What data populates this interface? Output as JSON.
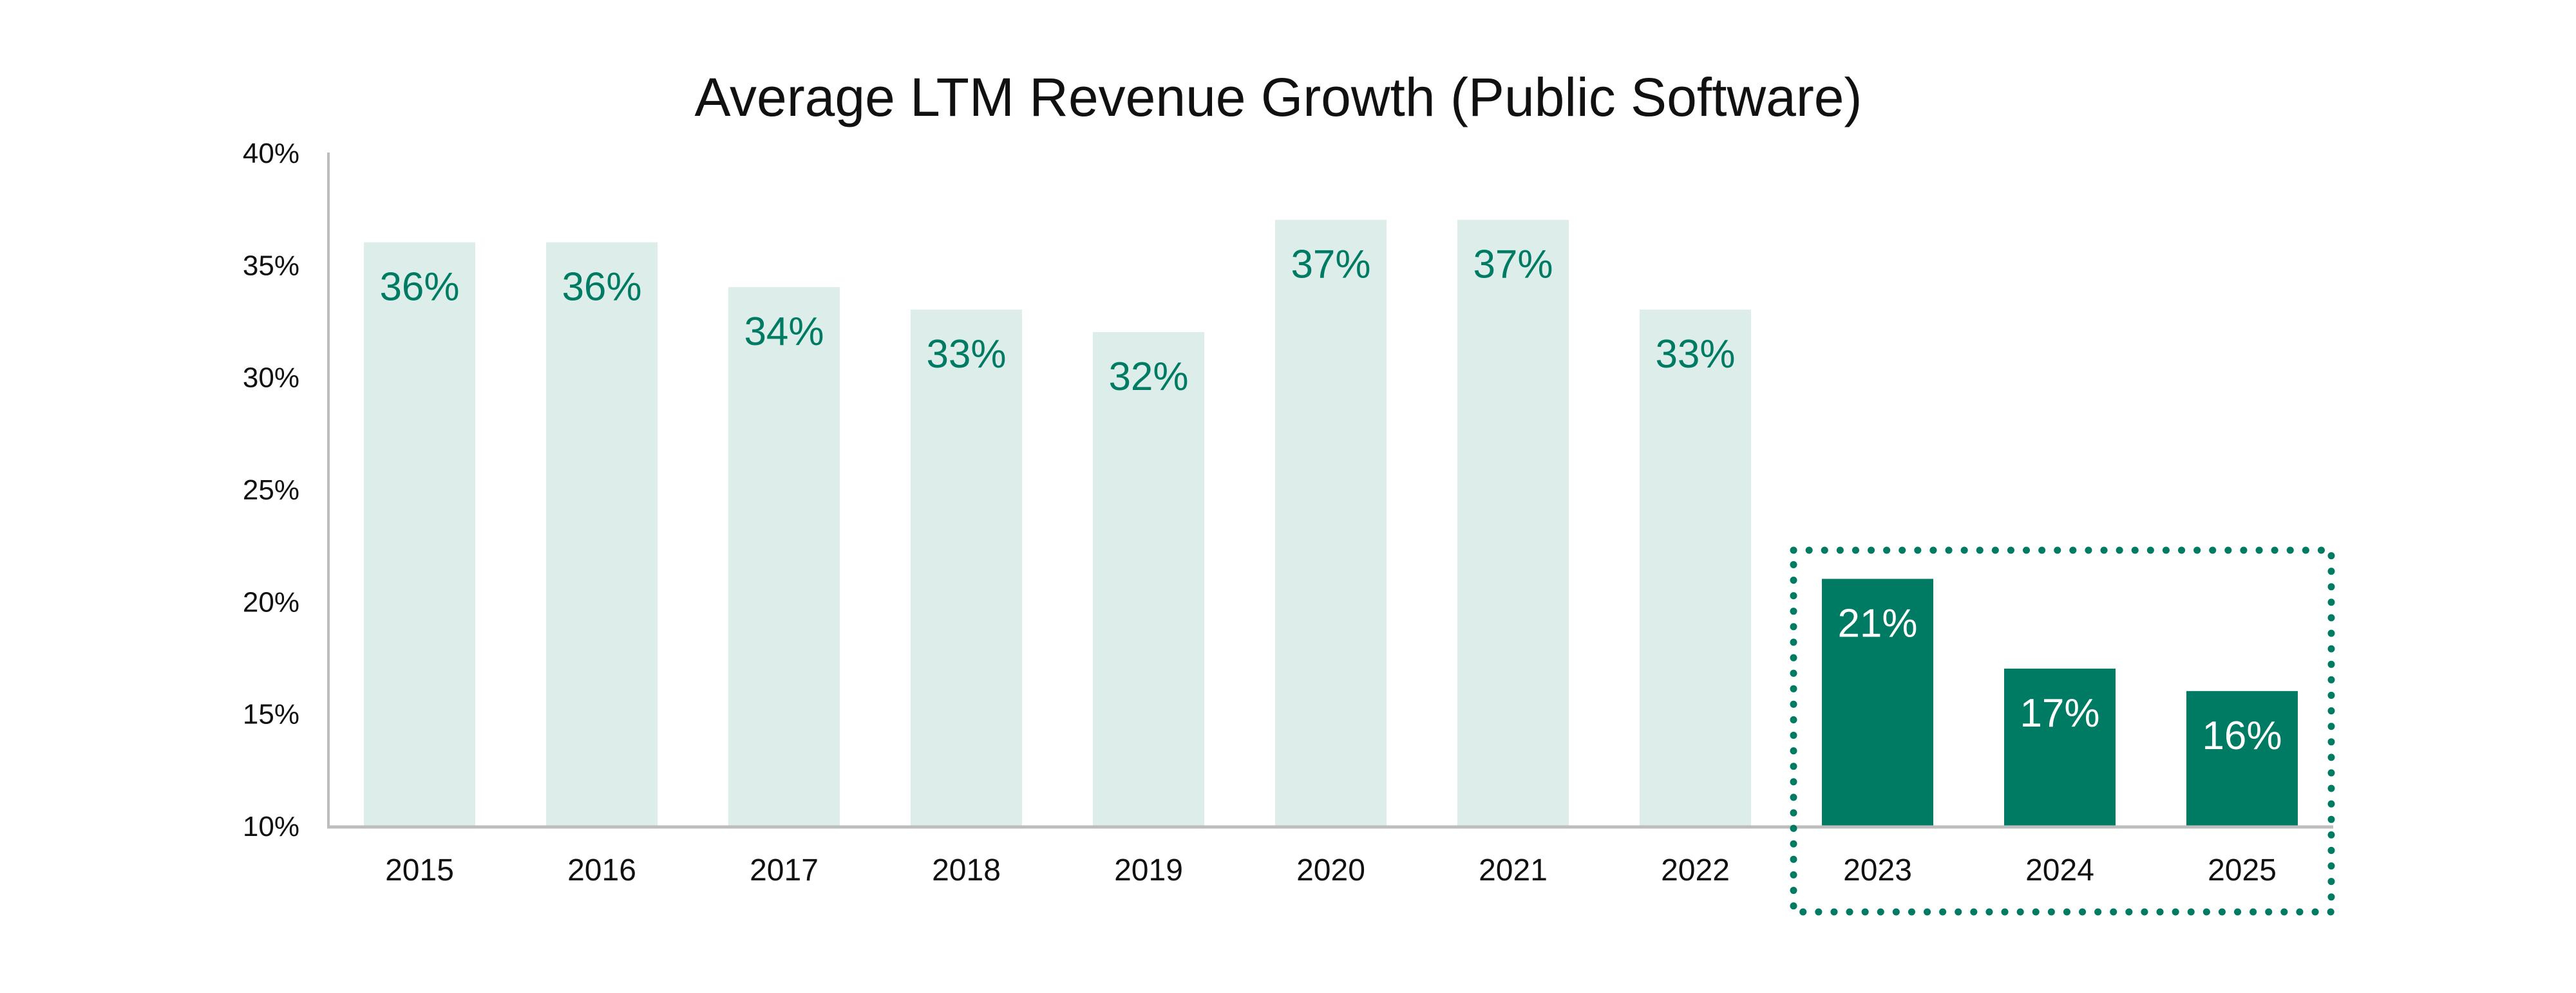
{
  "chart_data": {
    "type": "bar",
    "title": "Average LTM Revenue Growth (Public Software)",
    "xlabel": "",
    "ylabel": "",
    "ylim": [
      10,
      40
    ],
    "yticks": [
      "10%",
      "15%",
      "20%",
      "25%",
      "30%",
      "35%",
      "40%"
    ],
    "ytick_values": [
      10,
      15,
      20,
      25,
      30,
      35,
      40
    ],
    "categories": [
      "2015",
      "2016",
      "2017",
      "2018",
      "2019",
      "2020",
      "2021",
      "2022",
      "2023",
      "2024",
      "2025"
    ],
    "values": [
      36,
      36,
      34,
      33,
      32,
      37,
      37,
      33,
      21,
      17,
      16
    ],
    "labels": [
      "36%",
      "36%",
      "34%",
      "33%",
      "32%",
      "37%",
      "37%",
      "33%",
      "21%",
      "17%",
      "16%"
    ],
    "highlighted": [
      false,
      false,
      false,
      false,
      false,
      false,
      false,
      false,
      true,
      true,
      true
    ],
    "grid": false,
    "annotation": "dotted box around 2023–2025"
  },
  "colors": {
    "highlight": "#007B63",
    "muted": "#DDEDE9",
    "muted_label": "#007B63",
    "highlight_label": "#FFFFFF",
    "axis": "#BDBDBD",
    "text": "#111111"
  }
}
